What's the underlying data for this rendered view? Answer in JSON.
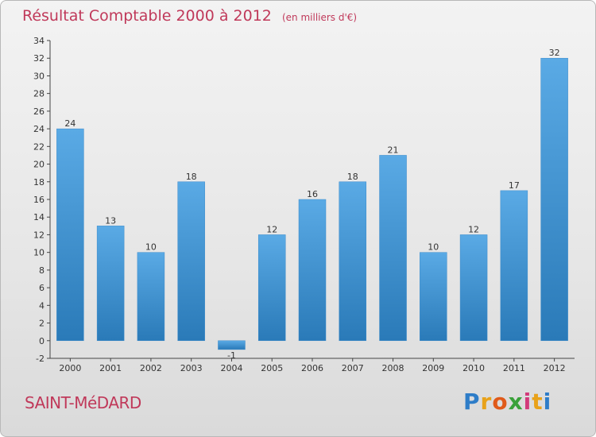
{
  "chart_data": {
    "type": "bar",
    "title": "Résultat Comptable 2000 à 2012",
    "subtitle": "(en milliers d'€)",
    "categories": [
      "2000",
      "2001",
      "2002",
      "2003",
      "2004",
      "2005",
      "2006",
      "2007",
      "2008",
      "2009",
      "2010",
      "2011",
      "2012"
    ],
    "values": [
      24,
      13,
      10,
      18,
      -1,
      12,
      16,
      18,
      21,
      10,
      12,
      17,
      32
    ],
    "ylim": [
      -2,
      34
    ],
    "yticks": [
      -2,
      0,
      2,
      4,
      6,
      8,
      10,
      12,
      14,
      16,
      18,
      20,
      22,
      24,
      26,
      28,
      30,
      32,
      34
    ],
    "grid": false,
    "xlabel": "",
    "ylabel": "",
    "bar_color_top": "#5aaae5",
    "bar_color_bottom": "#2a7ab8",
    "text_color": "#c0395a"
  },
  "commune": "SAINT-MéDARD",
  "logo": {
    "letters": [
      "P",
      "r",
      "o",
      "x",
      "i",
      "t",
      "i"
    ],
    "colors": [
      "#2e7dc8",
      "#e8a21a",
      "#e05a1a",
      "#3aa13a",
      "#d23a7a",
      "#e8a21a",
      "#2e7dc8"
    ]
  }
}
